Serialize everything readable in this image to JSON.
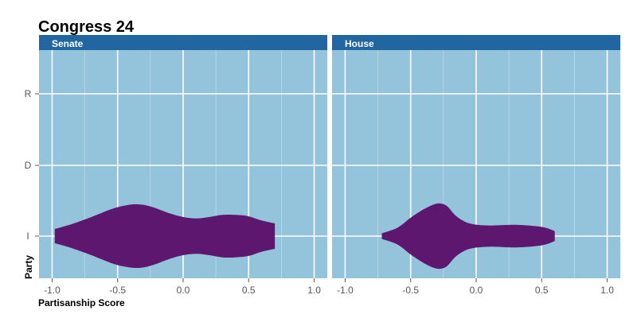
{
  "chart_data": {
    "type": "violin",
    "title": "Congress 24",
    "xlabel": "Partisanship Score",
    "ylabel": "Party",
    "xlim": [
      -1.1,
      1.1
    ],
    "x_ticks": [
      -1.0,
      -0.5,
      0.0,
      0.5,
      1.0
    ],
    "x_tick_labels": [
      "-1.0",
      "-0.5",
      "0.0",
      "0.5",
      "1.0"
    ],
    "categories": [
      "I",
      "D",
      "R"
    ],
    "fill_color": "#5E176E",
    "panel_background": "#94C3DC",
    "strip_color": "#2165A1",
    "grid": true,
    "panels": [
      {
        "label": "Senate",
        "series": [
          {
            "category": "I",
            "x": [
              -0.98,
              -0.85,
              -0.7,
              -0.55,
              -0.45,
              -0.35,
              -0.25,
              -0.1,
              0.0,
              0.1,
              0.2,
              0.3,
              0.4,
              0.5,
              0.6,
              0.7
            ],
            "half_width": [
              0.1,
              0.17,
              0.27,
              0.38,
              0.43,
              0.45,
              0.42,
              0.32,
              0.27,
              0.25,
              0.27,
              0.3,
              0.3,
              0.28,
              0.22,
              0.18
            ]
          }
        ]
      },
      {
        "label": "House",
        "series": [
          {
            "category": "I",
            "x": [
              -0.72,
              -0.6,
              -0.5,
              -0.4,
              -0.32,
              -0.27,
              -0.22,
              -0.15,
              -0.05,
              0.1,
              0.3,
              0.5,
              0.6
            ],
            "half_width": [
              0.04,
              0.12,
              0.26,
              0.38,
              0.45,
              0.46,
              0.42,
              0.28,
              0.18,
              0.15,
              0.16,
              0.13,
              0.07
            ]
          }
        ]
      }
    ]
  }
}
